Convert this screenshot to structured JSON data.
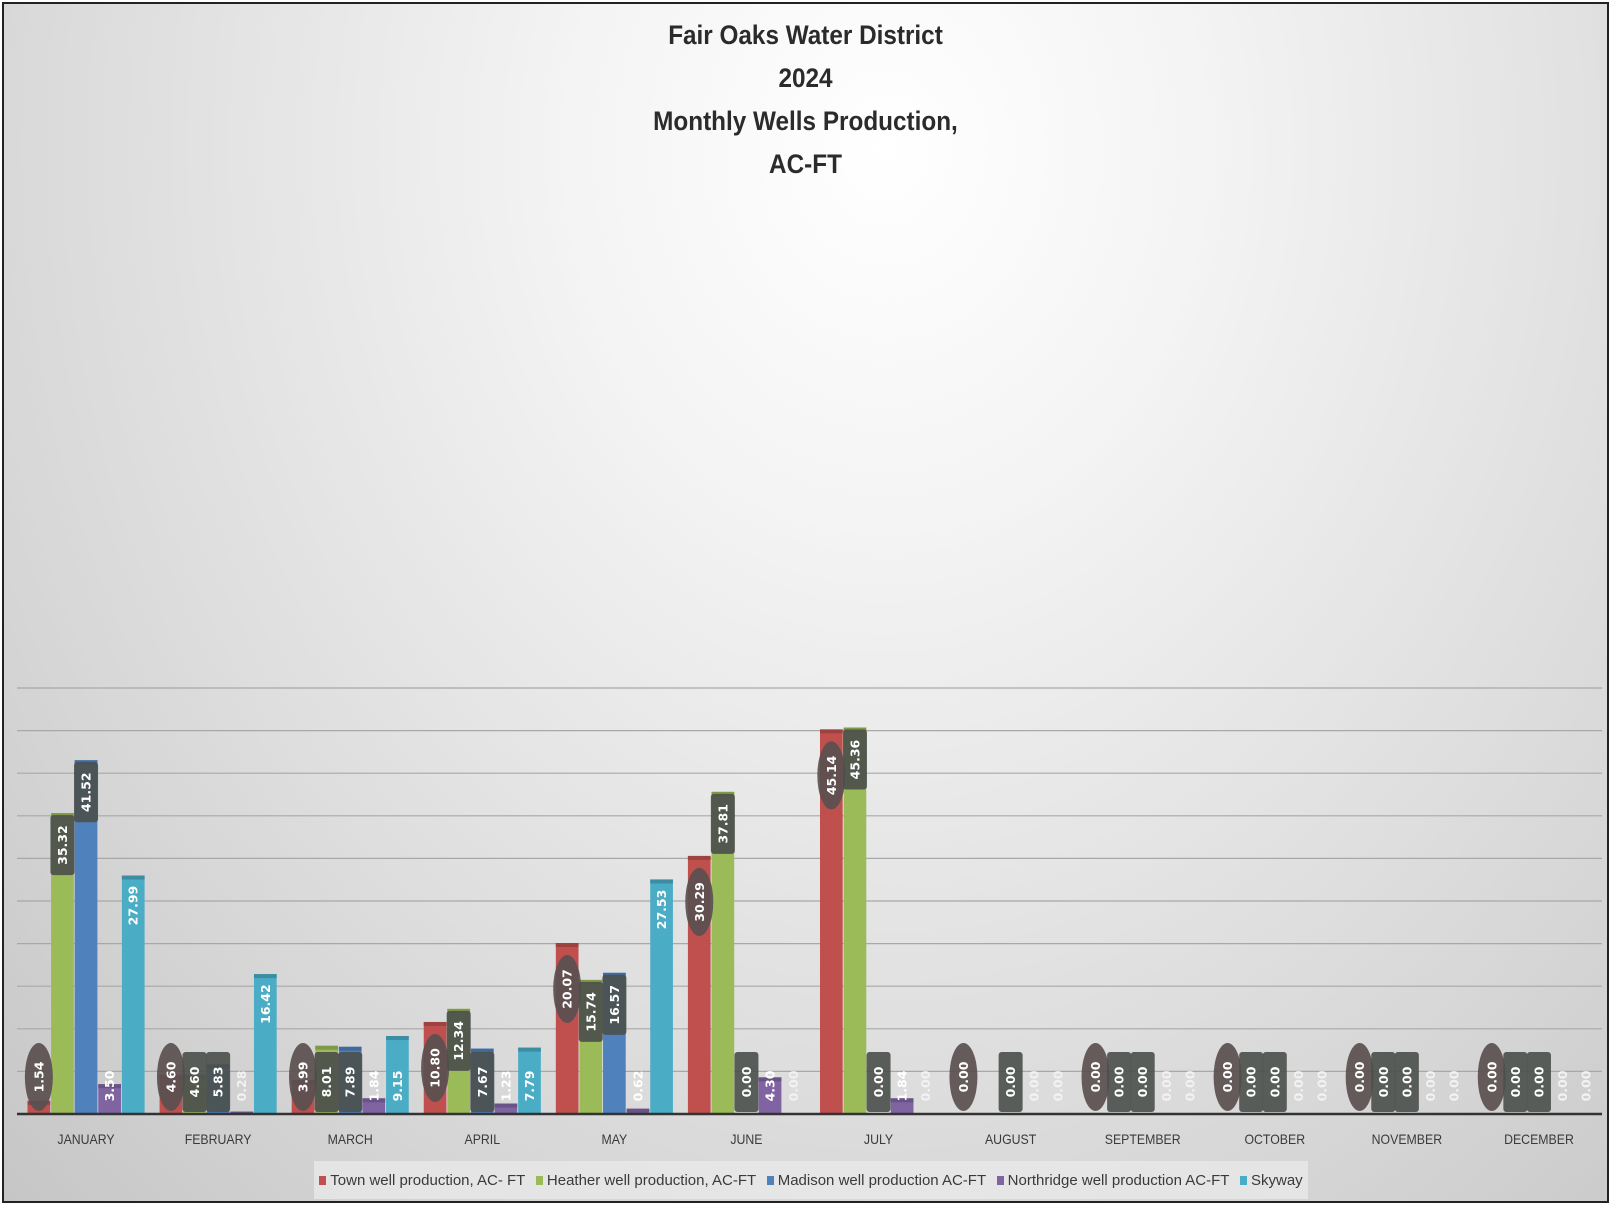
{
  "chart_data": {
    "type": "bar",
    "title_lines": [
      "Fair Oaks Water District",
      "2024",
      "Monthly Wells Production,",
      "AC-FT"
    ],
    "xlabel": "",
    "ylabel": "",
    "ylim": [
      0,
      50
    ],
    "grid": true,
    "legend_position": "bottom",
    "categories": [
      "JANUARY",
      "FEBRUARY",
      "MARCH",
      "APRIL",
      "MAY",
      "JUNE",
      "JULY",
      "AUGUST",
      "SEPTEMBER",
      "OCTOBER",
      "NOVEMBER",
      "DECEMBER"
    ],
    "series": [
      {
        "name": "Town well  production, AC- FT",
        "color": "#c0504d",
        "label_style": "oval",
        "values": [
          1.54,
          4.6,
          3.99,
          10.8,
          20.07,
          30.29,
          45.14,
          0.0,
          0.0,
          0.0,
          0.0,
          0.0
        ],
        "labels": [
          "1.54",
          "4.60",
          "3.99",
          "10.80",
          "20.07",
          "30.29",
          "45.14",
          "0.00",
          "0.00",
          "0.00",
          "0.00",
          "0.00"
        ]
      },
      {
        "name": "Heather well production, AC-FT",
        "color": "#9bbb59",
        "label_style": "box",
        "values": [
          35.32,
          4.6,
          8.01,
          12.34,
          15.74,
          37.81,
          45.36,
          0.0,
          0.0,
          0.0,
          0.0,
          0.0
        ],
        "labels": [
          "35.32",
          "4.60",
          "8.01",
          "12.34",
          "15.74",
          "37.81",
          "45.36",
          "",
          "0.00",
          "0.00",
          "0.00",
          "0.00"
        ]
      },
      {
        "name": "Madison well production AC-FT",
        "color": "#4f81bd",
        "label_style": "box",
        "values": [
          41.52,
          5.83,
          7.89,
          7.67,
          16.57,
          0.0,
          0.0,
          0.0,
          0.0,
          0.0,
          0.0,
          0.0
        ],
        "labels": [
          "41.52",
          "5.83",
          "7.89",
          "7.67",
          "16.57",
          "0.00",
          "0.00",
          "0.00",
          "0.00",
          "0.00",
          "0.00",
          "0.00"
        ]
      },
      {
        "name": "Northridge well production AC-FT",
        "color": "#8064a2",
        "label_style": "plain",
        "values": [
          3.5,
          0.28,
          1.84,
          1.23,
          0.62,
          4.3,
          1.84,
          0.0,
          0.0,
          0.0,
          0.0,
          0.0
        ],
        "labels": [
          "3.50",
          "0.28",
          "1.84",
          "1.23",
          "0.62",
          "4.30",
          "1.84",
          "0.00",
          "0.00",
          "0.00",
          "0.00",
          "0.00"
        ]
      },
      {
        "name": "Skyway",
        "color": "#4bacc6",
        "label_style": "plain",
        "values": [
          27.99,
          16.42,
          9.15,
          7.79,
          27.53,
          0.0,
          0.0,
          0.0,
          0.0,
          0.0,
          0.0,
          0.0
        ],
        "labels": [
          "27.99",
          "16.42",
          "9.15",
          "7.79",
          "27.53",
          "0.00",
          "0.00",
          "0.00",
          "0.00",
          "0.00",
          "0.00",
          "0.00"
        ]
      }
    ]
  }
}
